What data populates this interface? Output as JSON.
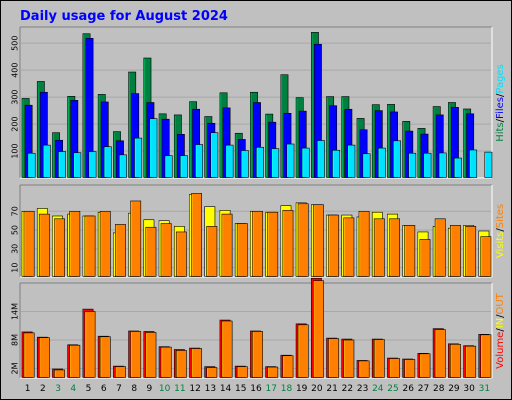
{
  "title": "Daily usage for August 2024",
  "colors": {
    "background": "#c0c0c0",
    "title": "#0000ff",
    "hits": "#008040",
    "files": "#0000ff",
    "pages": "#00e0ff",
    "visits": "#ffff00",
    "sites": "#ff8000",
    "volume": "#ff0000",
    "in": "#ffff00",
    "out": "#ff8000"
  },
  "chart_data": [
    {
      "type": "bar",
      "name": "hits-files-pages",
      "categories": [
        "1",
        "2",
        "3",
        "4",
        "5",
        "6",
        "7",
        "8",
        "9",
        "10",
        "11",
        "12",
        "13",
        "14",
        "15",
        "16",
        "17",
        "18",
        "19",
        "20",
        "21",
        "22",
        "23",
        "24",
        "25",
        "26",
        "27",
        "28",
        "29",
        "30",
        "31"
      ],
      "weekend_days": [
        "3",
        "4",
        "10",
        "11",
        "17",
        "18",
        "24",
        "25",
        "31"
      ],
      "ytick_labels": [
        "100",
        "200",
        "300",
        "400",
        "500"
      ],
      "ylim": [
        0,
        560
      ],
      "legend": [
        {
          "text": "Hits",
          "color": "#008040"
        },
        {
          "text": "/",
          "color": "#000000"
        },
        {
          "text": "Files",
          "color": "#0000ff"
        },
        {
          "text": "/",
          "color": "#000000"
        },
        {
          "text": "Pages",
          "color": "#00e0ff"
        }
      ],
      "series": [
        {
          "name": "Hits",
          "values": [
            295,
            358,
            168,
            303,
            535,
            310,
            172,
            393,
            445,
            238,
            234,
            283,
            228,
            316,
            166,
            318,
            237,
            383,
            298,
            540,
            302,
            302,
            221,
            272,
            273,
            210,
            184,
            265,
            280,
            256,
            0
          ]
        },
        {
          "name": "Files",
          "values": [
            270,
            318,
            140,
            288,
            518,
            282,
            138,
            313,
            280,
            218,
            162,
            255,
            203,
            260,
            143,
            280,
            207,
            240,
            248,
            496,
            268,
            255,
            179,
            250,
            245,
            174,
            163,
            234,
            262,
            238,
            0
          ]
        },
        {
          "name": "Pages",
          "values": [
            92,
            122,
            98,
            94,
            98,
            116,
            86,
            148,
            220,
            83,
            83,
            124,
            168,
            122,
            102,
            114,
            109,
            126,
            111,
            139,
            103,
            122,
            90,
            111,
            138,
            92,
            92,
            93,
            74,
            104,
            96
          ]
        }
      ]
    },
    {
      "type": "bar",
      "name": "visits-sites",
      "categories": [
        "1",
        "2",
        "3",
        "4",
        "5",
        "6",
        "7",
        "8",
        "9",
        "10",
        "11",
        "12",
        "13",
        "14",
        "15",
        "16",
        "17",
        "18",
        "19",
        "20",
        "21",
        "22",
        "23",
        "24",
        "25",
        "26",
        "27",
        "28",
        "29",
        "30",
        "31"
      ],
      "ytick_labels": [
        "10",
        "30",
        "50",
        "70"
      ],
      "ylim": [
        0,
        98
      ],
      "legend": [
        {
          "text": "Visits",
          "color": "#ffff00"
        },
        {
          "text": "/",
          "color": "#000000"
        },
        {
          "text": "Sites",
          "color": "#ff8000"
        }
      ],
      "series": [
        {
          "name": "Visits",
          "values": [
            70,
            73,
            65,
            67,
            65,
            69,
            47,
            68,
            61,
            60,
            54,
            88,
            75,
            71,
            57,
            70,
            69,
            76,
            79,
            77,
            66,
            66,
            64,
            69,
            67,
            55,
            48,
            54,
            52,
            55,
            49
          ]
        },
        {
          "name": "Sites",
          "values": [
            70,
            67,
            62,
            70,
            65,
            70,
            56,
            81,
            53,
            57,
            48,
            89,
            54,
            67,
            57,
            70,
            69,
            71,
            78,
            77,
            66,
            63,
            70,
            62,
            62,
            55,
            40,
            62,
            55,
            54,
            43
          ]
        }
      ]
    },
    {
      "type": "bar",
      "name": "volume",
      "categories": [
        "1",
        "2",
        "3",
        "4",
        "5",
        "6",
        "7",
        "8",
        "9",
        "10",
        "11",
        "12",
        "13",
        "14",
        "15",
        "16",
        "17",
        "18",
        "19",
        "20",
        "21",
        "22",
        "23",
        "24",
        "25",
        "26",
        "27",
        "28",
        "29",
        "30",
        "31"
      ],
      "ytick_labels": [
        "2M",
        "8M",
        "14M"
      ],
      "ylim": [
        0,
        20
      ],
      "legend": [
        {
          "text": "Volume",
          "color": "#ff0000"
        },
        {
          "text": "/",
          "color": "#000000"
        },
        {
          "text": "IN",
          "color": "#ffff00"
        },
        {
          "text": "/",
          "color": "#000000"
        },
        {
          "text": "OUT",
          "color": "#ff8000"
        }
      ],
      "series": [
        {
          "name": "Volume",
          "values": [
            9.7,
            8.6,
            1.9,
            7.0,
            14.5,
            8.8,
            2.5,
            9.9,
            9.8,
            6.6,
            6.0,
            6.3,
            2.4,
            12.2,
            2.5,
            9.9,
            2.4,
            4.8,
            11.4,
            21.0,
            8.4,
            8.2,
            3.7,
            8.2,
            4.2,
            4.0,
            5.2,
            10.4,
            7.2,
            6.8,
            9.2
          ]
        },
        {
          "name": "OUT",
          "values": [
            9.5,
            8.5,
            1.7,
            6.9,
            14.0,
            8.7,
            2.4,
            9.8,
            9.6,
            6.5,
            5.8,
            6.2,
            2.2,
            12.0,
            2.4,
            9.8,
            2.3,
            4.7,
            11.2,
            20.5,
            8.3,
            8.0,
            3.6,
            8.1,
            4.1,
            3.9,
            5.1,
            10.2,
            7.1,
            6.7,
            9.1
          ]
        }
      ]
    }
  ]
}
